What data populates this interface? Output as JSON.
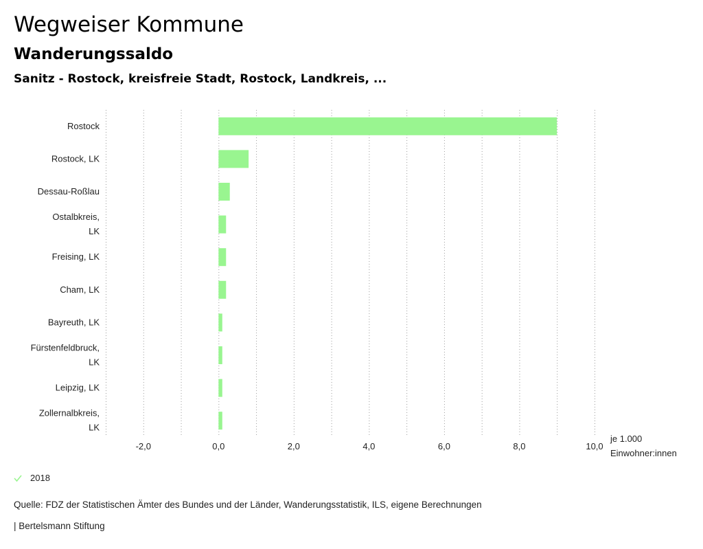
{
  "header": {
    "title": "Wegweiser Kommune",
    "subtitle": "Wanderungssaldo",
    "region": "Sanitz - Rostock, kreisfreie Stadt, Rostock, Landkreis, ..."
  },
  "chart_data": {
    "type": "bar",
    "orientation": "horizontal",
    "categories": [
      [
        "Rostock"
      ],
      [
        "Rostock, LK"
      ],
      [
        "Dessau-Roßlau"
      ],
      [
        "Ostalbkreis,",
        "LK"
      ],
      [
        "Freising, LK"
      ],
      [
        "Cham, LK"
      ],
      [
        "Bayreuth, LK"
      ],
      [
        "Fürstenfeldbruck,",
        "LK"
      ],
      [
        "Leipzig, LK"
      ],
      [
        "Zollernalbkreis,",
        "LK"
      ]
    ],
    "series": [
      {
        "name": "2018",
        "color": "#99f590",
        "values": [
          9.0,
          0.8,
          0.3,
          0.2,
          0.2,
          0.2,
          0.1,
          0.1,
          0.1,
          0.1
        ]
      }
    ],
    "xlim": [
      -3.0,
      10.0
    ],
    "xticks": [
      -2.0,
      0.0,
      2.0,
      4.0,
      6.0,
      8.0,
      10.0
    ],
    "xtick_labels": [
      "-2,0",
      "0,0",
      "2,0",
      "4,0",
      "6,0",
      "8,0",
      "10,0"
    ],
    "unit_label": [
      "je 1.000",
      "Einwohner:innen"
    ],
    "grid": "vertical-dotted"
  },
  "legend": {
    "label": "2018",
    "icon": "check-icon",
    "color": "#99f590"
  },
  "source": "Quelle: FDZ der Statistischen Ämter des Bundes und der Länder, Wanderungsstatistik, ILS, eigene Berechnungen",
  "footer": "| Bertelsmann Stiftung"
}
